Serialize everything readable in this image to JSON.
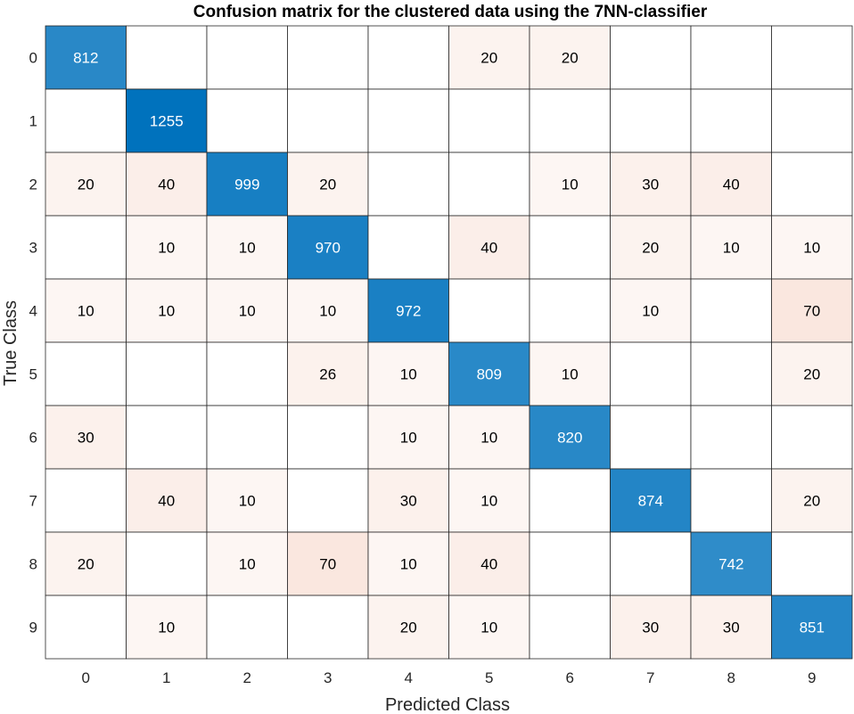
{
  "chart_data": {
    "type": "heatmap",
    "title": "Confusion matrix for the clustered data using the 7NN-classifier",
    "xlabel": "Predicted Class",
    "ylabel": "True Class",
    "x_categories": [
      "0",
      "1",
      "2",
      "3",
      "4",
      "5",
      "6",
      "7",
      "8",
      "9"
    ],
    "y_categories": [
      "0",
      "1",
      "2",
      "3",
      "4",
      "5",
      "6",
      "7",
      "8",
      "9"
    ],
    "values": [
      [
        812,
        null,
        null,
        null,
        null,
        20,
        20,
        null,
        null,
        null
      ],
      [
        null,
        1255,
        null,
        null,
        null,
        null,
        null,
        null,
        null,
        null
      ],
      [
        20,
        40,
        999,
        20,
        null,
        null,
        10,
        30,
        40,
        null
      ],
      [
        null,
        10,
        10,
        970,
        null,
        40,
        null,
        20,
        10,
        10
      ],
      [
        10,
        10,
        10,
        10,
        972,
        null,
        null,
        10,
        null,
        70
      ],
      [
        null,
        null,
        null,
        26,
        10,
        809,
        10,
        null,
        null,
        20
      ],
      [
        30,
        null,
        null,
        null,
        10,
        10,
        820,
        null,
        null,
        null
      ],
      [
        null,
        40,
        10,
        null,
        30,
        10,
        null,
        874,
        null,
        20
      ],
      [
        20,
        null,
        10,
        70,
        10,
        40,
        null,
        null,
        742,
        null
      ],
      [
        null,
        10,
        null,
        null,
        20,
        10,
        null,
        30,
        30,
        851
      ]
    ],
    "diagonal_color_low": "#ffffff",
    "diagonal_color_high": "#0072bd",
    "offdiagonal_color_low": "#ffffff",
    "offdiagonal_color_high": "#d95319",
    "grid": true
  }
}
